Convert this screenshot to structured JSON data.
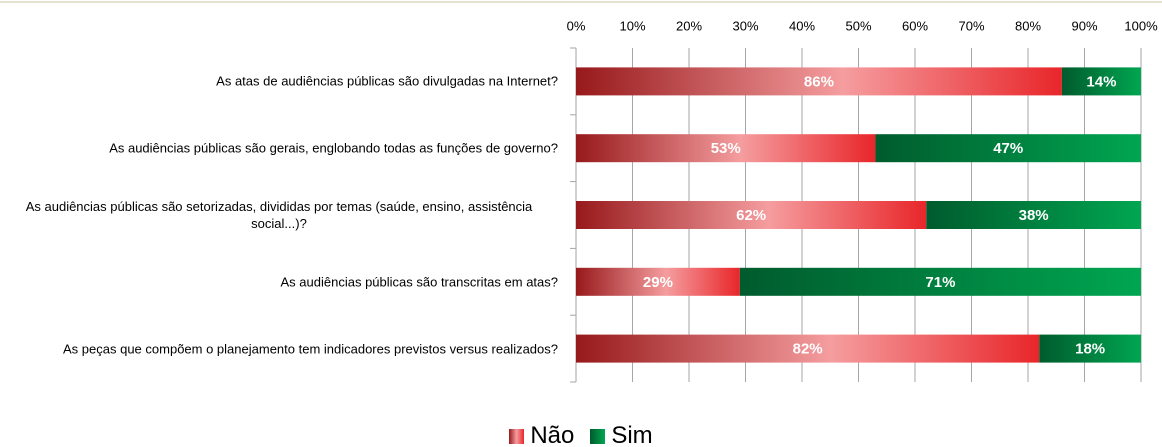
{
  "chart_data": {
    "type": "bar",
    "orientation": "horizontal",
    "stacked": true,
    "categories": [
      "As atas de audiências públicas são divulgadas na Internet?",
      "As audiências públicas são gerais, englobando todas as funções de governo?",
      "As audiências públicas são setorizadas, divididas por temas (saúde, ensino, assistência social...)?",
      "As audiências públicas são transcritas em atas?",
      "As peças que compõem o planejamento tem indicadores  previstos versus realizados?"
    ],
    "series": [
      {
        "name": "Não",
        "color": "#e8262a",
        "values": [
          86,
          53,
          62,
          29,
          82
        ],
        "value_labels": [
          "86%",
          "53%",
          "62%",
          "29%",
          "82%"
        ]
      },
      {
        "name": "Sim",
        "color": "#00a651",
        "values": [
          14,
          47,
          38,
          71,
          18
        ],
        "value_labels": [
          "14%",
          "47%",
          "38%",
          "71%",
          "18%"
        ]
      }
    ],
    "xlim": [
      0,
      100
    ],
    "xticks": [
      {
        "value": 0,
        "label": "0%"
      },
      {
        "value": 10,
        "label": "10%"
      },
      {
        "value": 20,
        "label": "20%"
      },
      {
        "value": 30,
        "label": "30%"
      },
      {
        "value": 40,
        "label": "40%"
      },
      {
        "value": 50,
        "label": "50%"
      },
      {
        "value": 60,
        "label": "60%"
      },
      {
        "value": 70,
        "label": "70%"
      },
      {
        "value": 80,
        "label": "80%"
      },
      {
        "value": 90,
        "label": "90%"
      },
      {
        "value": 100,
        "label": "100%"
      }
    ],
    "grid": true,
    "legend": "bottom"
  }
}
